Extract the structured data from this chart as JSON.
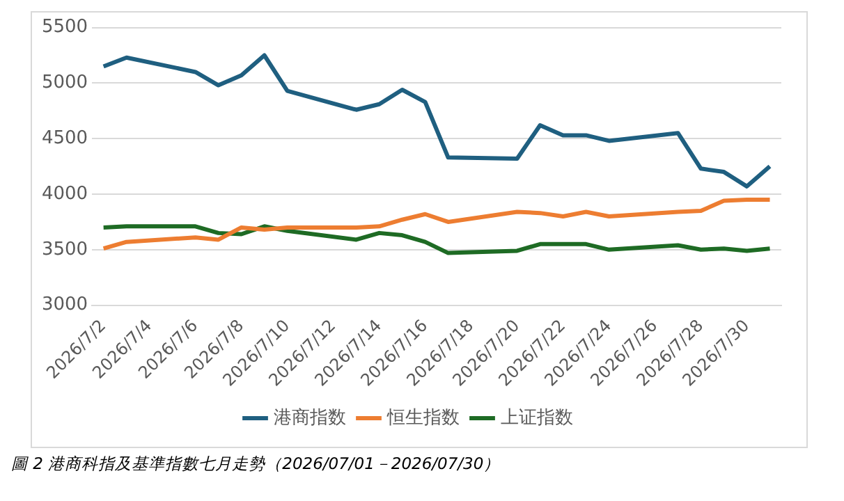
{
  "chart_data": {
    "type": "line",
    "x": [
      "2026-07-02",
      "2026-07-03",
      "2026-07-06",
      "2026-07-07",
      "2026-07-08",
      "2026-07-09",
      "2026-07-10",
      "2026-07-13",
      "2026-07-14",
      "2026-07-15",
      "2026-07-16",
      "2026-07-17",
      "2026-07-20",
      "2026-07-21",
      "2026-07-22",
      "2026-07-23",
      "2026-07-24",
      "2026-07-27",
      "2026-07-28",
      "2026-07-29",
      "2026-07-30",
      "2026-07-31"
    ],
    "series": [
      {
        "name": "港商指数",
        "color": "#1f5f80",
        "values": [
          5150,
          5230,
          5100,
          4980,
          5070,
          5250,
          4930,
          4760,
          4810,
          4940,
          4830,
          4330,
          4320,
          4620,
          4530,
          4530,
          4480,
          4550,
          4230,
          4200,
          4070,
          4250
        ]
      },
      {
        "name": "恒生指数",
        "color": "#ed7d31",
        "values": [
          3510,
          3570,
          3610,
          3590,
          3700,
          3680,
          3700,
          3700,
          3710,
          3770,
          3820,
          3750,
          3840,
          3830,
          3800,
          3840,
          3800,
          3840,
          3850,
          3940,
          3950,
          3950
        ]
      },
      {
        "name": "上证指数",
        "color": "#1e6b24",
        "values": [
          3700,
          3710,
          3710,
          3650,
          3640,
          3710,
          3670,
          3590,
          3650,
          3630,
          3570,
          3470,
          3490,
          3550,
          3550,
          3550,
          3500,
          3540,
          3500,
          3510,
          3490,
          3510
        ]
      }
    ],
    "xlim": [
      "2026-07-01T12:00",
      "2026-07-31T12:00"
    ],
    "xticks": [
      {
        "value": "2026-07-02",
        "label": "2026/7/2"
      },
      {
        "value": "2026-07-04",
        "label": "2026/7/4"
      },
      {
        "value": "2026-07-06",
        "label": "2026/7/6"
      },
      {
        "value": "2026-07-08",
        "label": "2026/7/8"
      },
      {
        "value": "2026-07-10",
        "label": "2026/7/10"
      },
      {
        "value": "2026-07-12",
        "label": "2026/7/12"
      },
      {
        "value": "2026-07-14",
        "label": "2026/7/14"
      },
      {
        "value": "2026-07-16",
        "label": "2026/7/16"
      },
      {
        "value": "2026-07-18",
        "label": "2026/7/18"
      },
      {
        "value": "2026-07-20",
        "label": "2026/7/20"
      },
      {
        "value": "2026-07-22",
        "label": "2026/7/22"
      },
      {
        "value": "2026-07-24",
        "label": "2026/7/24"
      },
      {
        "value": "2026-07-26",
        "label": "2026/7/26"
      },
      {
        "value": "2026-07-28",
        "label": "2026/7/28"
      },
      {
        "value": "2026-07-30",
        "label": "2026/7/30"
      }
    ],
    "ylim": [
      3000,
      5500
    ],
    "yticks": [
      3000,
      3500,
      4000,
      4500,
      5000,
      5500
    ],
    "grid": "y",
    "legend": "bottom",
    "marker": "none",
    "line_style": "solid",
    "annotations": [
      "圖 2 港商科指及基準指數七月走勢（2026/07/01－2026/07/30）"
    ]
  }
}
